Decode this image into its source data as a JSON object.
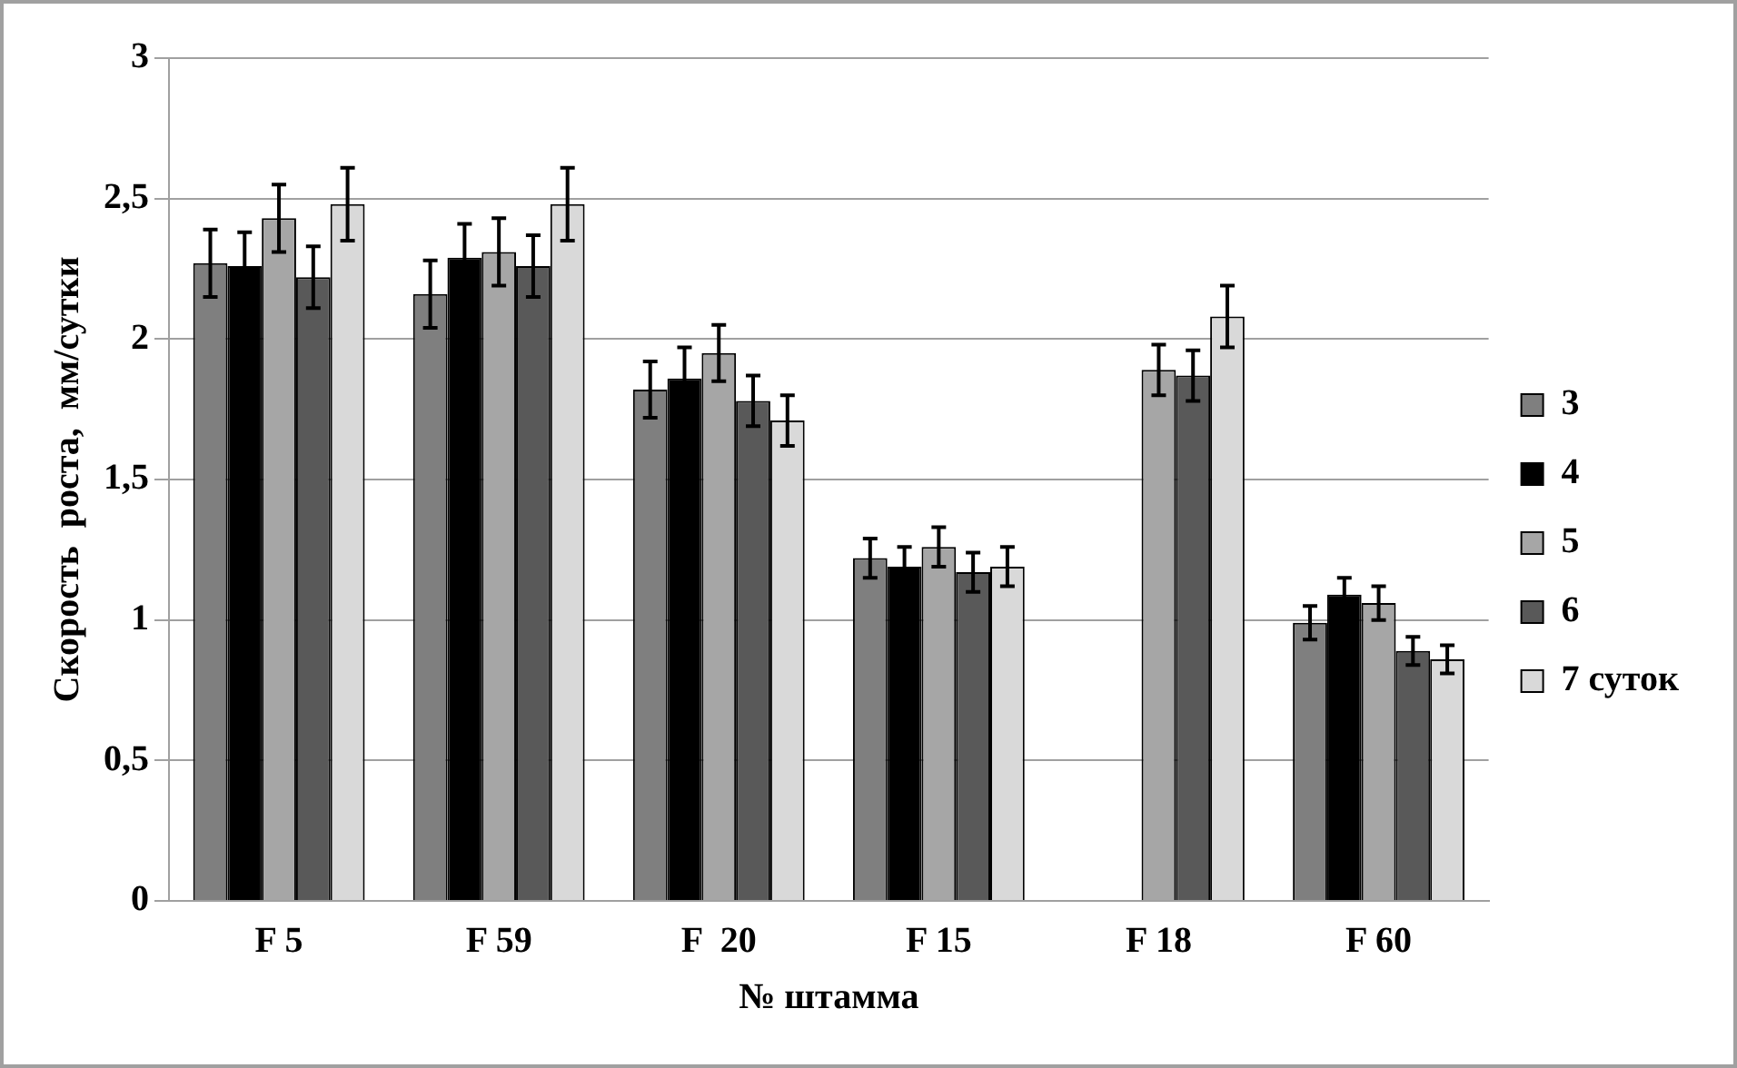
{
  "chart_data": {
    "type": "bar",
    "xlabel": "№ штамма",
    "ylabel": "Скорость  роста,  мм/сутки",
    "categories": [
      "F 5",
      "F 59",
      "F  20",
      "F 15",
      "F 18",
      "F 60"
    ],
    "series": [
      {
        "name": "3",
        "color": "#7f7f7f",
        "values": [
          2.27,
          2.16,
          1.82,
          1.22,
          0,
          0.99
        ],
        "errors": [
          0.12,
          0.12,
          0.1,
          0.07,
          null,
          0.06
        ]
      },
      {
        "name": "4",
        "color": "#000000",
        "values": [
          2.26,
          2.29,
          1.86,
          1.19,
          0,
          1.09
        ],
        "errors": [
          0.12,
          0.12,
          0.11,
          0.07,
          null,
          0.06
        ]
      },
      {
        "name": "5",
        "color": "#a6a6a6",
        "values": [
          2.43,
          2.31,
          1.95,
          1.26,
          1.89,
          1.06
        ],
        "errors": [
          0.12,
          0.12,
          0.1,
          0.07,
          0.09,
          0.06
        ]
      },
      {
        "name": "6",
        "color": "#595959",
        "values": [
          2.22,
          2.26,
          1.78,
          1.17,
          1.87,
          0.89
        ],
        "errors": [
          0.11,
          0.11,
          0.09,
          0.07,
          0.09,
          0.05
        ]
      },
      {
        "name": "7 суток",
        "color": "#d9d9d9",
        "values": [
          2.48,
          2.48,
          1.71,
          1.19,
          2.08,
          0.86
        ],
        "errors": [
          0.13,
          0.13,
          0.09,
          0.07,
          0.11,
          0.05
        ]
      }
    ],
    "ylim": [
      0,
      3
    ],
    "yticks": [
      {
        "value": 0,
        "label": "0"
      },
      {
        "value": 0.5,
        "label": "0,5"
      },
      {
        "value": 1,
        "label": "1"
      },
      {
        "value": 1.5,
        "label": "1,5"
      },
      {
        "value": 2,
        "label": "2"
      },
      {
        "value": 2.5,
        "label": "2,5"
      },
      {
        "value": 3,
        "label": "3"
      }
    ],
    "grid": "y",
    "legend": "right"
  }
}
